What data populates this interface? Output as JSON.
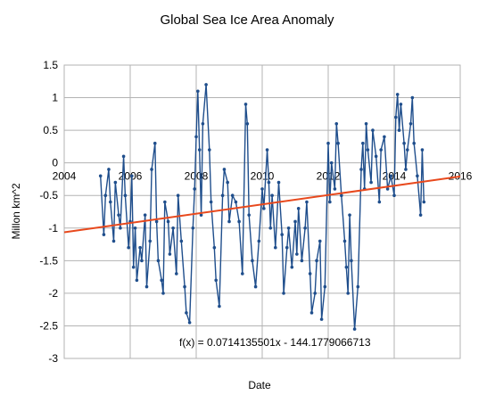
{
  "chart_data": {
    "type": "scatter",
    "title": "Global Sea Ice Area Anomaly",
    "xlabel": "Date",
    "ylabel": "Millon km^2",
    "xlim": [
      2004,
      2016
    ],
    "ylim": [
      -3,
      1.5
    ],
    "x_ticks": [
      "2004",
      "2006",
      "2008",
      "2010",
      "2012",
      "2014",
      "2016"
    ],
    "y_ticks": [
      "1.5",
      "1",
      "0.5",
      "0",
      "-0.5",
      "-1",
      "-1.5",
      "-2",
      "-2.5",
      "-3"
    ],
    "grid": true,
    "legend": "none",
    "series": [
      {
        "color": "#1f4e8c",
        "marker": "dot",
        "connected": true,
        "x": [
          2005.1,
          2005.2,
          2005.25,
          2005.35,
          2005.4,
          2005.5,
          2005.55,
          2005.65,
          2005.7,
          2005.8,
          2005.85,
          2005.95,
          2006.0,
          2006.05,
          2006.1,
          2006.15,
          2006.2,
          2006.3,
          2006.35,
          2006.45,
          2006.5,
          2006.6,
          2006.65,
          2006.75,
          2006.8,
          2006.85,
          2006.95,
          2007.0,
          2007.05,
          2007.15,
          2007.2,
          2007.3,
          2007.4,
          2007.45,
          2007.55,
          2007.65,
          2007.7,
          2007.8,
          2007.9,
          2007.95,
          2008.0,
          2008.05,
          2008.1,
          2008.15,
          2008.2,
          2008.3,
          2008.4,
          2008.45,
          2008.55,
          2008.6,
          2008.7,
          2008.8,
          2008.85,
          2008.95,
          2009.0,
          2009.1,
          2009.2,
          2009.3,
          2009.4,
          2009.5,
          2009.55,
          2009.6,
          2009.7,
          2009.8,
          2009.9,
          2010.0,
          2010.05,
          2010.15,
          2010.2,
          2010.25,
          2010.3,
          2010.4,
          2010.5,
          2010.6,
          2010.65,
          2010.75,
          2010.8,
          2010.9,
          2011.0,
          2011.05,
          2011.1,
          2011.2,
          2011.3,
          2011.35,
          2011.45,
          2011.5,
          2011.6,
          2011.65,
          2011.75,
          2011.8,
          2011.9,
          2012.0,
          2012.05,
          2012.1,
          2012.2,
          2012.25,
          2012.3,
          2012.4,
          2012.5,
          2012.55,
          2012.6,
          2012.65,
          2012.7,
          2012.8,
          2012.9,
          2013.0,
          2013.05,
          2013.1,
          2013.15,
          2013.2,
          2013.3,
          2013.35,
          2013.45,
          2013.55,
          2013.6,
          2013.7,
          2013.8,
          2013.9,
          2014.0,
          2014.05,
          2014.1,
          2014.15,
          2014.2,
          2014.3,
          2014.35,
          2014.4,
          2014.5,
          2014.55,
          2014.6,
          2014.7,
          2014.8,
          2014.85,
          2014.9
        ],
        "y": [
          -0.2,
          -1.1,
          -0.5,
          -0.1,
          -0.6,
          -1.2,
          -0.3,
          -0.8,
          -1.0,
          0.1,
          -0.5,
          -1.3,
          -0.9,
          -0.2,
          -1.6,
          -1.0,
          -1.8,
          -1.3,
          -1.5,
          -0.8,
          -1.9,
          -1.2,
          -0.1,
          0.3,
          -0.9,
          -1.5,
          -1.8,
          -2.0,
          -0.6,
          -0.9,
          -1.4,
          -1.0,
          -1.7,
          -0.5,
          -1.2,
          -1.9,
          -2.3,
          -2.45,
          -1.0,
          -0.4,
          0.4,
          1.1,
          0.2,
          -0.8,
          0.6,
          1.2,
          0.2,
          -0.6,
          -1.3,
          -1.8,
          -2.2,
          -0.5,
          -0.1,
          -0.3,
          -0.9,
          -0.5,
          -0.6,
          -0.9,
          -1.7,
          0.9,
          0.6,
          -0.8,
          -1.5,
          -1.9,
          -1.2,
          -0.4,
          -0.7,
          0.2,
          -0.3,
          -1.0,
          -0.5,
          -1.3,
          -0.3,
          -1.1,
          -2.0,
          -1.3,
          -1.0,
          -1.6,
          -0.9,
          -1.4,
          -0.7,
          -1.5,
          -1.0,
          -0.6,
          -1.7,
          -2.3,
          -2.0,
          -1.5,
          -1.2,
          -2.4,
          -1.9,
          0.3,
          -0.6,
          0.0,
          -0.4,
          0.6,
          0.3,
          -0.5,
          -1.2,
          -1.6,
          -2.0,
          -0.8,
          -1.5,
          -2.55,
          -1.9,
          -0.1,
          0.3,
          -0.4,
          0.6,
          0.2,
          -0.3,
          0.5,
          0.1,
          -0.6,
          0.2,
          0.4,
          -0.4,
          -0.2,
          -0.5,
          0.7,
          1.05,
          0.5,
          0.9,
          0.3,
          -0.1,
          0.2,
          0.6,
          1.0,
          0.3,
          -0.2,
          -0.8,
          0.2,
          -0.6
        ]
      }
    ],
    "trendline": {
      "color": "#e8491d",
      "x": [
        2004,
        2016
      ],
      "equation": "f(x) = 0.0714135501x - 144.1779066713"
    }
  }
}
